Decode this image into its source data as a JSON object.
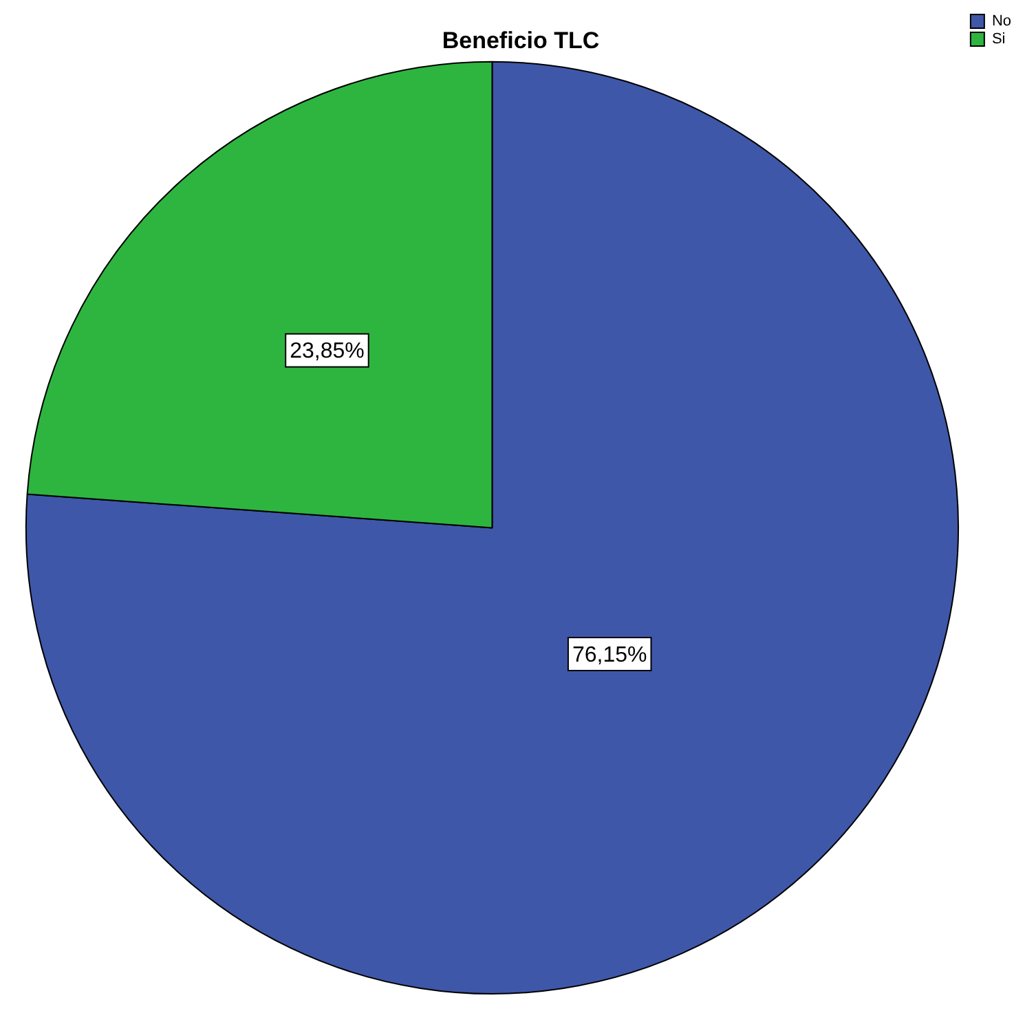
{
  "chart_data": {
    "type": "pie",
    "title": "Beneficio TLC",
    "categories": [
      "No",
      "Si"
    ],
    "values": [
      76.15,
      23.85
    ],
    "colors": [
      "#3f57a8",
      "#2eb540"
    ],
    "value_labels": [
      "76,15%",
      "23,85%"
    ],
    "legend": "top right"
  }
}
